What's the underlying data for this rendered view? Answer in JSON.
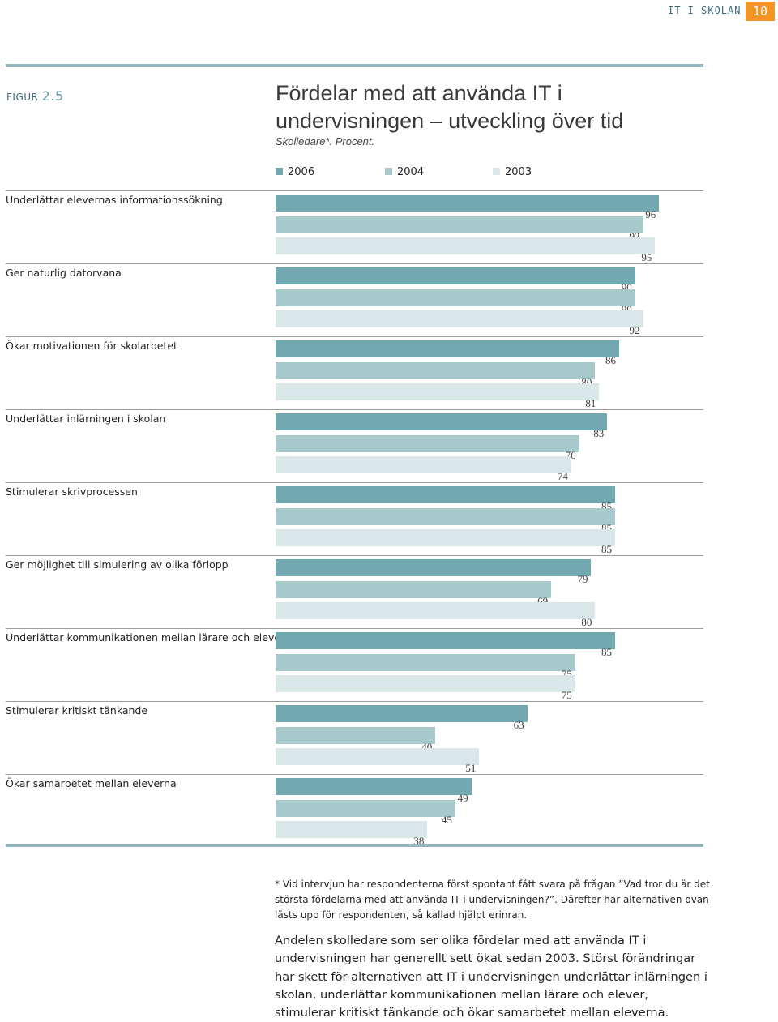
{
  "header": {
    "section_label": "IT I SKOLAN",
    "page_number": "10"
  },
  "figure": {
    "label_prefix": "FIGUR",
    "label_number": "2.5",
    "title": "Fördelar med att använda IT i undervisningen – utveckling över tid",
    "subtitle": "Skolledare*. Procent."
  },
  "colors": {
    "2006": "#72a9b1",
    "2004": "#a7c9cc",
    "2003": "#dae7e8",
    "rule": "#93b7be",
    "accent": "#f29526"
  },
  "chart_data": {
    "type": "bar",
    "orientation": "horizontal",
    "title": "Fördelar med att använda IT i undervisningen – utveckling över tid",
    "subtitle": "Skolledare*. Procent.",
    "xlabel": "",
    "ylabel": "",
    "xlim": [
      0,
      100
    ],
    "legend_position": "top",
    "categories": [
      "Underlättar elevernas informationssökning",
      "Ger naturlig datorvana",
      "Ökar motivationen för skolarbetet",
      "Underlättar inlärningen i skolan",
      "Stimulerar skrivprocessen",
      "Ger möjlighet till simulering av olika förlopp",
      "Underlättar kommunikationen mellan lärare och elever",
      "Stimulerar kritiskt tänkande",
      "Ökar samarbetet mellan eleverna"
    ],
    "series": [
      {
        "name": "2006",
        "color": "#72a9b1",
        "values": [
          96,
          90,
          86,
          83,
          85,
          79,
          85,
          63,
          49
        ]
      },
      {
        "name": "2004",
        "color": "#a7c9cc",
        "values": [
          92,
          90,
          80,
          76,
          85,
          69,
          75,
          40,
          45
        ]
      },
      {
        "name": "2003",
        "color": "#dae7e8",
        "values": [
          95,
          92,
          81,
          74,
          85,
          80,
          75,
          51,
          38
        ]
      }
    ]
  },
  "footnote": "* Vid intervjun har respondenterna först spontant fått svara på frågan ”Vad tror du är det största fördelarna med att använda IT i undervisningen?”. Därefter har alternativen ovan lästs upp för respondenten, så kallad hjälpt erinran.",
  "summary": "Andelen skolledare som ser olika fördelar med att använda IT i undervisningen har generellt sett ökat sedan 2003. Störst förändringar har skett för alternativen att IT i undervisningen underlättar inlärningen i skolan, underlättar kommunikationen mellan lärare och elever, stimulerar kritiskt tänkande och ökar samarbetet mellan eleverna."
}
